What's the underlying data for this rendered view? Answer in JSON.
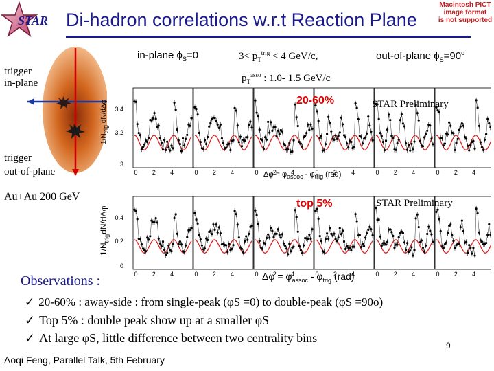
{
  "slide": {
    "title": "Di-hadron correlations w.r.t Reaction Plane",
    "logo_text": "STAR",
    "pict_notice": [
      "Macintosh PICT",
      "image format",
      "is not supported"
    ],
    "page_number": "9",
    "footer": "Aoqi Feng, Parallel Talk, 5th February"
  },
  "labels": {
    "in_plane": "in-plane ϕ",
    "in_plane_sub": "S",
    "in_plane_val": "=0",
    "pt_trig_pre": "3< p",
    "pt_trig_sub": "T",
    "pt_trig_sup": "trig",
    "pt_trig_post": " < 4 GeV/c,",
    "out_plane": "out-of-plane ϕ",
    "out_plane_sub": "S",
    "out_plane_val": "=90",
    "out_plane_sup": "o",
    "pt_assoc_pre": "p",
    "pt_assoc_sub": "T",
    "pt_assoc_sup": "asso",
    "pt_assoc_post": " : 1.0- 1.5 GeV/c",
    "trigger_in": "trigger\nin-plane",
    "trigger_out": "trigger\nout-of-plane",
    "collision": "Au+Au 200 GeV",
    "centrality_1": "20-60%",
    "centrality_2": "top 5%",
    "preliminary": "STAR Preliminary",
    "y_axis_1": "1/N",
    "y_axis_1_sub": "trig",
    "y_axis_1_post": " dN/dΔφ",
    "y_axis_2": "1/N",
    "y_axis_2_sub": "trig",
    "y_axis_2_post": "dN/dΔφ",
    "x_axis_1": "Δφ = φ",
    "x_axis_1_sub1": "assoc",
    "x_axis_1_mid": " - φ",
    "x_axis_1_sub2": "trig",
    "x_axis_1_post": " (rad)",
    "x_axis_2": "Δφ = φ",
    "x_axis_2_sub1": "assoc",
    "x_axis_2_mid": " - φ",
    "x_axis_2_sub2": "trig",
    "x_axis_2_post": " (rad)",
    "y_ticks_top": [
      "3.4",
      "3.2",
      "3"
    ],
    "y_ticks_bottom": [
      "0.4",
      "0.2",
      "0"
    ],
    "x_ticks": [
      "0",
      "2",
      "4",
      "0",
      "2",
      "4",
      "0",
      "2",
      "4",
      "0",
      "2",
      "4",
      "0",
      "2",
      "4",
      "0",
      "2",
      "4"
    ]
  },
  "observations": {
    "heading": "Observations :",
    "items": [
      "20-60% : away-side : from single-peak (φS =0) to double-peak (φS =90o)",
      "Top 5% : double peak show up at a smaller φS",
      "At large φS, little difference between two centrality bins"
    ],
    "check": "✓"
  }
}
